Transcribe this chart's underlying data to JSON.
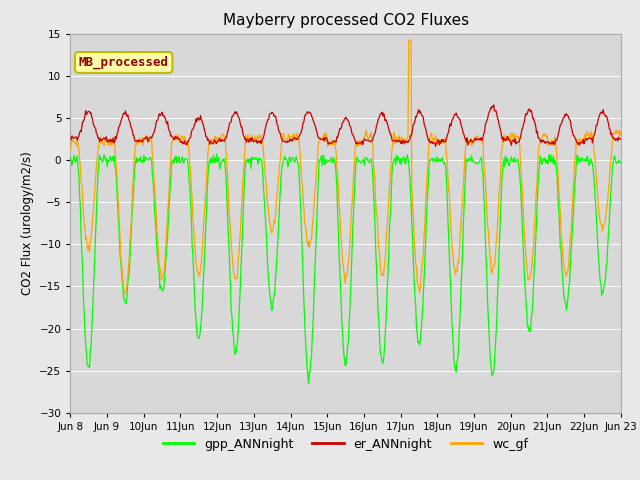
{
  "title": "Mayberry processed CO2 Fluxes",
  "ylabel": "CO2 Flux (urology/m2/s)",
  "ylim": [
    -30,
    15
  ],
  "yticks": [
    -30,
    -25,
    -20,
    -15,
    -10,
    -5,
    0,
    5,
    10,
    15
  ],
  "fig_bg": "#e8e8e8",
  "plot_bg": "#d8d8d8",
  "gpp_color": "#00ff00",
  "er_color": "#cc0000",
  "wc_color": "#ffa500",
  "annotation_text": "MB_processed",
  "annotation_color": "#990000",
  "annotation_bg": "#ffffaa",
  "annotation_edge": "#bbbb00",
  "n_days": 15,
  "ppd": 48,
  "start_day": 8
}
